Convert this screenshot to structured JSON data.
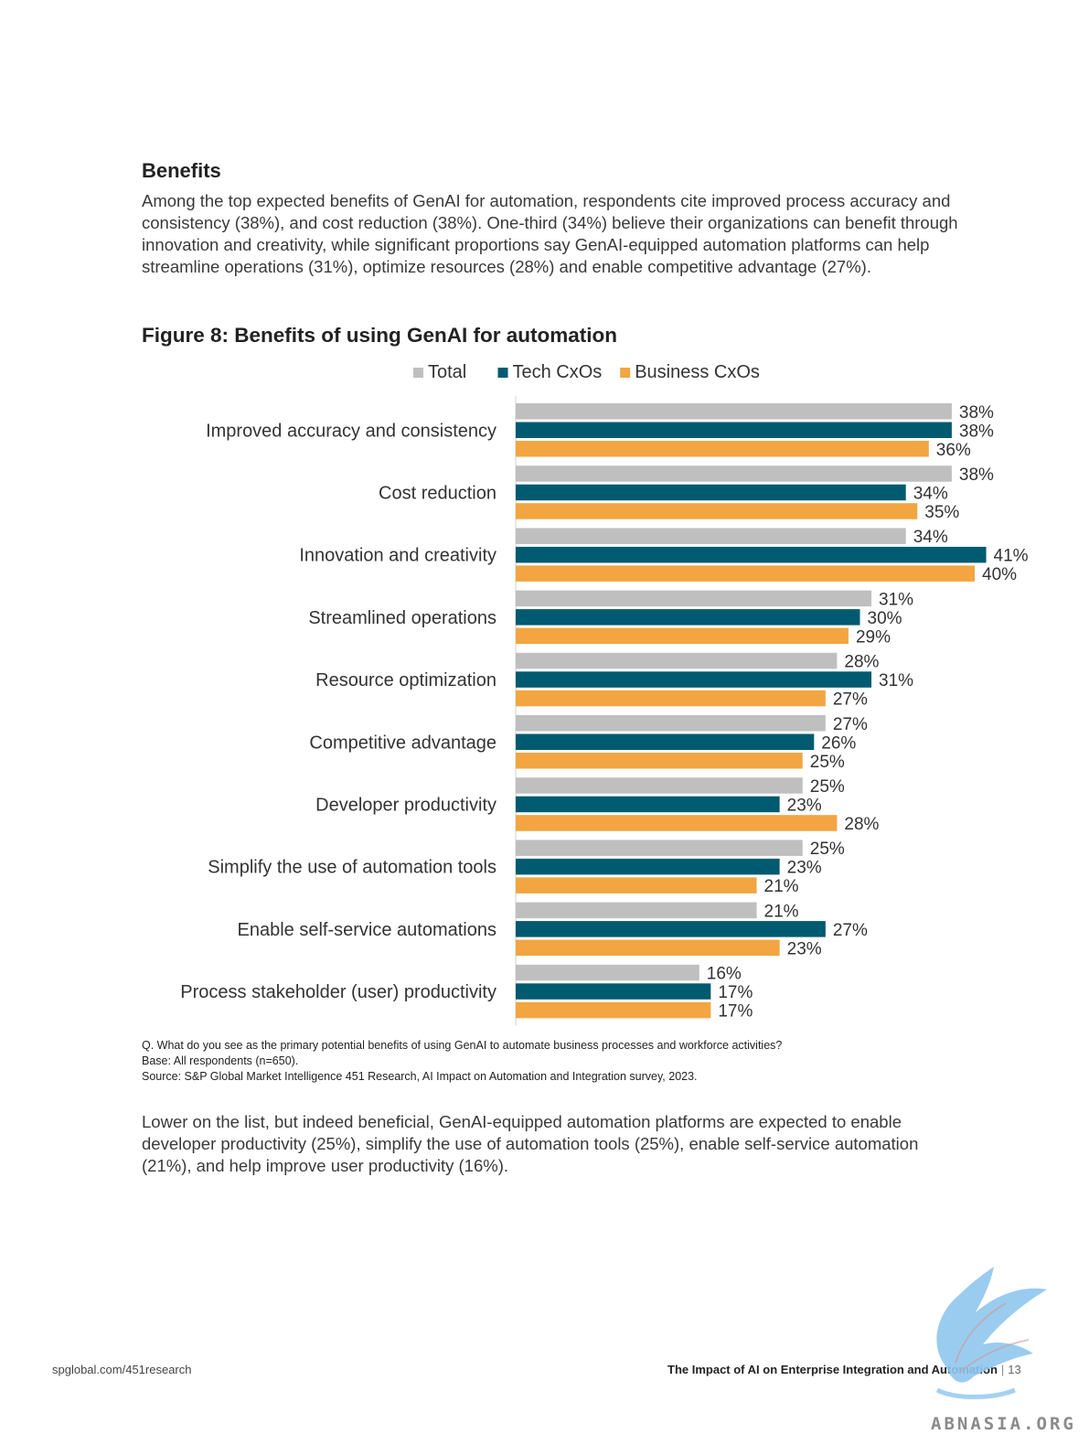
{
  "section": {
    "heading": "Benefits",
    "intro": "Among the top expected benefits of GenAI for automation, respondents cite improved process accuracy and consistency (38%), and cost reduction (38%). One-third (34%) believe their organizations can benefit through innovation and creativity, while significant proportions say GenAI-equipped automation platforms can help streamline operations (31%), optimize resources (28%) and enable competitive advantage (27%)."
  },
  "figure": {
    "title": "Figure 8: Benefits of using GenAI for automation"
  },
  "chart_data": {
    "type": "bar",
    "orientation": "horizontal",
    "categories": [
      "Improved accuracy and consistency",
      "Cost reduction",
      "Innovation and creativity",
      "Streamlined operations",
      "Resource optimization",
      "Competitive advantage",
      "Developer productivity",
      "Simplify the use of automation tools",
      "Enable self-service automations",
      "Process stakeholder (user) productivity"
    ],
    "series": [
      {
        "name": "Total",
        "color": "#bfbfbf",
        "values": [
          38,
          38,
          34,
          31,
          28,
          27,
          25,
          25,
          21,
          16
        ]
      },
      {
        "name": "Tech CxOs",
        "color": "#005a70",
        "values": [
          38,
          34,
          41,
          30,
          31,
          26,
          23,
          23,
          27,
          17
        ]
      },
      {
        "name": "Business CxOs",
        "color": "#f2a541",
        "values": [
          36,
          35,
          40,
          29,
          27,
          25,
          28,
          21,
          23,
          17
        ]
      }
    ],
    "value_suffix": "%",
    "legend_position": "top",
    "grid": false
  },
  "notes": {
    "question": "Q. What do you see as the primary potential benefits of using GenAI to automate business processes and workforce activities?",
    "base": "Base: All respondents (n=650).",
    "source": "Source: S&P Global Market Intelligence 451 Research, AI Impact on Automation and Integration survey, 2023."
  },
  "outro": "Lower on the list, but indeed beneficial, GenAI-equipped automation platforms are expected to enable developer productivity (25%), simplify the use of automation tools (25%), enable self-service automation (21%), and help improve user productivity (16%).",
  "footer": {
    "url": "spglobal.com/451research",
    "doc_title": "The Impact of AI on Enterprise Integration and Automation",
    "separator": "|",
    "page": "13"
  },
  "watermark": {
    "text": "ABNASIA.ORG"
  }
}
